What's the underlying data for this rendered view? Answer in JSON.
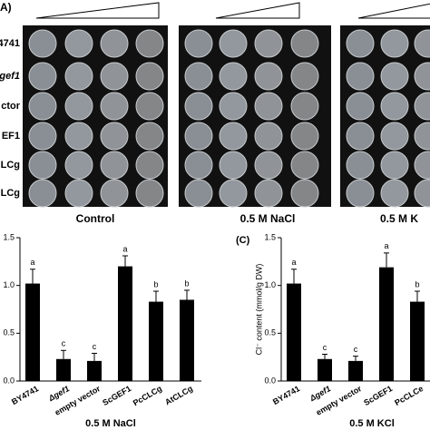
{
  "panel_a": {
    "label": "A)",
    "row_labels": [
      "4741",
      "gef1",
      "ctor",
      "EF1",
      "LCg",
      "LCg"
    ],
    "conditions": [
      "Control",
      "0.5 M NaCl",
      "0.5 M K"
    ]
  },
  "chart_data": [
    {
      "type": "bar",
      "xlabel": "0.5 M NaCl",
      "categories": [
        "BY4741",
        "Δgef1",
        "empty vector",
        "ScGEF1",
        "PcCLCg",
        "AtCLCg"
      ],
      "values": [
        1.02,
        0.23,
        0.21,
        1.2,
        0.83,
        0.85
      ],
      "errors": [
        0.15,
        0.09,
        0.08,
        0.11,
        0.11,
        0.1
      ],
      "annotations": [
        "a",
        "c",
        "c",
        "a",
        "b",
        "b"
      ],
      "color": "#000000",
      "ylim": [
        0,
        1.5
      ],
      "yticks": [
        {
          "value": 0,
          "label": "0.0"
        },
        0.5,
        {
          "value": 1,
          "label": "1.0"
        },
        1.5
      ]
    },
    {
      "type": "bar",
      "panel": "(C)",
      "xlabel": "0.5 M KCl",
      "ylabel": "Cl⁻ content (mmol/g DW)",
      "categories": [
        "BY4741",
        "Δgef1",
        "empty vector",
        "ScGEF1",
        "PcCLCe"
      ],
      "values": [
        1.02,
        0.23,
        0.21,
        1.19,
        0.83
      ],
      "errors": [
        0.15,
        0.05,
        0.05,
        0.15,
        0.11
      ],
      "annotations": [
        "a",
        "c",
        "c",
        "a",
        "b"
      ],
      "color": "#000000",
      "ylim": [
        0,
        1.5
      ],
      "yticks": [
        {
          "value": 0,
          "label": "0.0"
        },
        0.5,
        {
          "value": 1,
          "label": "1.0"
        },
        1.5
      ]
    }
  ]
}
